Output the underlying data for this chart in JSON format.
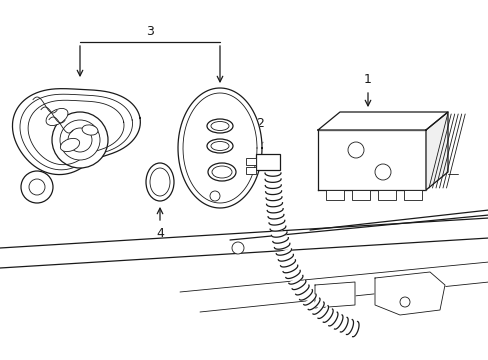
{
  "bg_color": "#ffffff",
  "line_color": "#1a1a1a",
  "lw": 0.9,
  "tlw": 0.6,
  "font_size": 9,
  "fig_width": 4.89,
  "fig_height": 3.6,
  "dpi": 100,
  "label_1": "1",
  "label_2": "2",
  "label_3": "3",
  "label_4": "4"
}
